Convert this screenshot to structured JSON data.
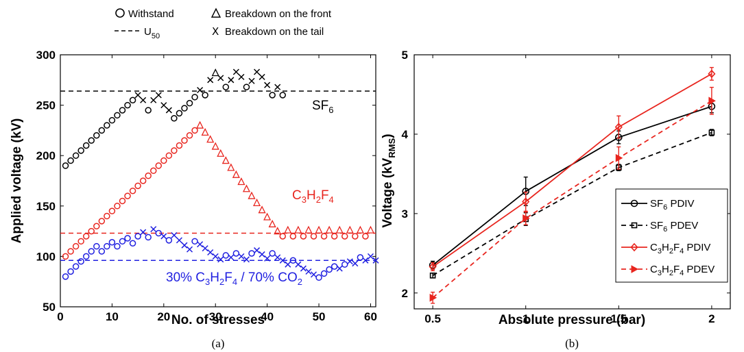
{
  "chart_data": [
    {
      "type": "scatter",
      "panel_caption": "(a)",
      "xlabel": "No. of stresses",
      "ylabel": "Applied voltage (kV)",
      "xlim": [
        0,
        61
      ],
      "ylim": [
        50,
        300
      ],
      "xticks": [
        "0",
        "10",
        "20",
        "30",
        "40",
        "50",
        "60"
      ],
      "yticks": [
        "50",
        "100",
        "150",
        "200",
        "250",
        "300"
      ],
      "legend": {
        "withstand": "Withstand",
        "front": "Breakdown on the front",
        "u50": "U",
        "u50_sub": "50",
        "tail": "Breakdown on the tail"
      },
      "labels": {
        "sf6": "SF",
        "sf6_sub": "6",
        "c3": "C",
        "c3_sub3": "3",
        "c3_h": "H",
        "c3_sub2": "2",
        "c3_f": "F",
        "c3_sub4": "4",
        "mix_a": "30% C",
        "mix_sub3": "3",
        "mix_h": "H",
        "mix_sub2": "2",
        "mix_f": "F",
        "mix_sub4": "4",
        "mix_b": " / 70% CO",
        "mix_subco": "2"
      },
      "series": [
        {
          "name": "SF6",
          "color": "#000000",
          "u50": 264,
          "points": [
            [
              1,
              190,
              "o"
            ],
            [
              2,
              195,
              "o"
            ],
            [
              3,
              200,
              "o"
            ],
            [
              4,
              205,
              "o"
            ],
            [
              5,
              210,
              "o"
            ],
            [
              6,
              215,
              "o"
            ],
            [
              7,
              220,
              "o"
            ],
            [
              8,
              225,
              "o"
            ],
            [
              9,
              230,
              "o"
            ],
            [
              10,
              235,
              "o"
            ],
            [
              11,
              240,
              "o"
            ],
            [
              12,
              245,
              "o"
            ],
            [
              13,
              250,
              "o"
            ],
            [
              14,
              255,
              "o"
            ],
            [
              15,
              260,
              "x"
            ],
            [
              16,
              255,
              "x"
            ],
            [
              17,
              245,
              "o"
            ],
            [
              18,
              255,
              "x"
            ],
            [
              19,
              260,
              "x"
            ],
            [
              20,
              250,
              "x"
            ],
            [
              21,
              245,
              "x"
            ],
            [
              22,
              237,
              "o"
            ],
            [
              23,
              242,
              "o"
            ],
            [
              24,
              247,
              "o"
            ],
            [
              25,
              252,
              "o"
            ],
            [
              26,
              258,
              "o"
            ],
            [
              27,
              265,
              "x"
            ],
            [
              28,
              260,
              "o"
            ],
            [
              29,
              275,
              "x"
            ],
            [
              30,
              282,
              "t"
            ],
            [
              31,
              277,
              "x"
            ],
            [
              32,
              268,
              "o"
            ],
            [
              33,
              275,
              "x"
            ],
            [
              34,
              283,
              "x"
            ],
            [
              35,
              278,
              "x"
            ],
            [
              36,
              268,
              "o"
            ],
            [
              37,
              274,
              "x"
            ],
            [
              38,
              283,
              "x"
            ],
            [
              39,
              278,
              "x"
            ],
            [
              40,
              270,
              "x"
            ],
            [
              41,
              260,
              "o"
            ],
            [
              42,
              268,
              "x"
            ],
            [
              43,
              260,
              "o"
            ]
          ]
        },
        {
          "name": "C3H2F4",
          "color": "#e8251e",
          "u50": 123,
          "points": [
            [
              1,
              100,
              "o"
            ],
            [
              2,
              105,
              "o"
            ],
            [
              3,
              110,
              "o"
            ],
            [
              4,
              115,
              "o"
            ],
            [
              5,
              120,
              "o"
            ],
            [
              6,
              125,
              "o"
            ],
            [
              7,
              130,
              "o"
            ],
            [
              8,
              135,
              "o"
            ],
            [
              9,
              140,
              "o"
            ],
            [
              10,
              145,
              "o"
            ],
            [
              11,
              150,
              "o"
            ],
            [
              12,
              155,
              "o"
            ],
            [
              13,
              160,
              "o"
            ],
            [
              14,
              165,
              "o"
            ],
            [
              15,
              170,
              "o"
            ],
            [
              16,
              175,
              "o"
            ],
            [
              17,
              180,
              "o"
            ],
            [
              18,
              185,
              "o"
            ],
            [
              19,
              190,
              "o"
            ],
            [
              20,
              195,
              "o"
            ],
            [
              21,
              200,
              "o"
            ],
            [
              22,
              205,
              "o"
            ],
            [
              23,
              210,
              "o"
            ],
            [
              24,
              215,
              "o"
            ],
            [
              25,
              220,
              "o"
            ],
            [
              26,
              225,
              "o"
            ],
            [
              27,
              230,
              "t"
            ],
            [
              28,
              223,
              "t"
            ],
            [
              29,
              216,
              "t"
            ],
            [
              30,
              209,
              "t"
            ],
            [
              31,
              202,
              "t"
            ],
            [
              32,
              195,
              "t"
            ],
            [
              33,
              188,
              "t"
            ],
            [
              34,
              181,
              "t"
            ],
            [
              35,
              174,
              "t"
            ],
            [
              36,
              167,
              "t"
            ],
            [
              37,
              160,
              "t"
            ],
            [
              38,
              153,
              "t"
            ],
            [
              39,
              146,
              "t"
            ],
            [
              40,
              139,
              "t"
            ],
            [
              41,
              132,
              "t"
            ],
            [
              42,
              125,
              "t"
            ],
            [
              43,
              120,
              "o"
            ],
            [
              44,
              126,
              "t"
            ],
            [
              45,
              120,
              "o"
            ],
            [
              46,
              126,
              "t"
            ],
            [
              47,
              120,
              "o"
            ],
            [
              48,
              126,
              "t"
            ],
            [
              49,
              120,
              "o"
            ],
            [
              50,
              126,
              "t"
            ],
            [
              51,
              120,
              "o"
            ],
            [
              52,
              126,
              "t"
            ],
            [
              53,
              120,
              "o"
            ],
            [
              54,
              126,
              "t"
            ],
            [
              55,
              120,
              "o"
            ],
            [
              56,
              126,
              "t"
            ],
            [
              57,
              120,
              "o"
            ],
            [
              58,
              126,
              "t"
            ],
            [
              59,
              120,
              "o"
            ],
            [
              60,
              126,
              "t"
            ]
          ]
        },
        {
          "name": "30% C3H2F4 / 70% CO2",
          "color": "#1f1fe0",
          "u50": 96,
          "points": [
            [
              1,
              80,
              "o"
            ],
            [
              2,
              85,
              "o"
            ],
            [
              3,
              90,
              "o"
            ],
            [
              4,
              95,
              "o"
            ],
            [
              5,
              100,
              "o"
            ],
            [
              6,
              105,
              "o"
            ],
            [
              7,
              110,
              "o"
            ],
            [
              8,
              105,
              "o"
            ],
            [
              9,
              110,
              "o"
            ],
            [
              10,
              114,
              "o"
            ],
            [
              11,
              110,
              "o"
            ],
            [
              12,
              115,
              "o"
            ],
            [
              13,
              118,
              "o"
            ],
            [
              14,
              113,
              "o"
            ],
            [
              15,
              120,
              "o"
            ],
            [
              16,
              124,
              "x"
            ],
            [
              17,
              119,
              "o"
            ],
            [
              18,
              127,
              "x"
            ],
            [
              19,
              123,
              "o"
            ],
            [
              20,
              120,
              "x"
            ],
            [
              21,
              116,
              "o"
            ],
            [
              22,
              121,
              "x"
            ],
            [
              23,
              116,
              "x"
            ],
            [
              24,
              111,
              "x"
            ],
            [
              25,
              107,
              "x"
            ],
            [
              26,
              115,
              "o"
            ],
            [
              27,
              112,
              "x"
            ],
            [
              28,
              108,
              "x"
            ],
            [
              29,
              104,
              "x"
            ],
            [
              30,
              100,
              "x"
            ],
            [
              31,
              97,
              "x"
            ],
            [
              32,
              101,
              "o"
            ],
            [
              33,
              99,
              "x"
            ],
            [
              34,
              103,
              "o"
            ],
            [
              35,
              100,
              "x"
            ],
            [
              36,
              97,
              "x"
            ],
            [
              37,
              103,
              "o"
            ],
            [
              38,
              106,
              "x"
            ],
            [
              39,
              102,
              "x"
            ],
            [
              40,
              98,
              "x"
            ],
            [
              41,
              103,
              "o"
            ],
            [
              42,
              99,
              "x"
            ],
            [
              43,
              96,
              "x"
            ],
            [
              44,
              92,
              "x"
            ],
            [
              45,
              96,
              "o"
            ],
            [
              46,
              92,
              "x"
            ],
            [
              47,
              88,
              "x"
            ],
            [
              48,
              85,
              "x"
            ],
            [
              49,
              82,
              "x"
            ],
            [
              50,
              79,
              "o"
            ],
            [
              51,
              83,
              "o"
            ],
            [
              52,
              87,
              "o"
            ],
            [
              53,
              90,
              "o"
            ],
            [
              54,
              88,
              "x"
            ],
            [
              55,
              92,
              "o"
            ],
            [
              56,
              95,
              "x"
            ],
            [
              57,
              93,
              "x"
            ],
            [
              58,
              99,
              "o"
            ],
            [
              59,
              96,
              "x"
            ],
            [
              60,
              100,
              "x"
            ],
            [
              61,
              96,
              "x"
            ]
          ]
        }
      ]
    },
    {
      "type": "line",
      "panel_caption": "(b)",
      "xlabel": "Absolute pressure (bar)",
      "ylabel": "Voltage (kV",
      "ylabel_sub": "RMS",
      "ylabel_end": ")",
      "xlim": [
        0.4,
        2.1
      ],
      "ylim": [
        1.8,
        5
      ],
      "xticks": [
        0.5,
        1,
        1.5,
        2
      ],
      "xtick_labels": [
        "0.5",
        "1",
        "1.5",
        "2"
      ],
      "yticks": [
        2,
        3,
        4,
        5
      ],
      "ytick_labels": [
        "2",
        "3",
        "4",
        "5"
      ],
      "x": [
        0.5,
        1,
        1.5,
        2
      ],
      "series": [
        {
          "label_main": "SF",
          "label_sub": "6",
          "label_tail": " PDIV",
          "color": "#000000",
          "dash": false,
          "marker": "o",
          "values": [
            2.35,
            3.28,
            3.96,
            4.35
          ],
          "errors": [
            0.05,
            0.18,
            0.08,
            0.08
          ]
        },
        {
          "label_main": "SF",
          "label_sub": "6",
          "label_tail": " PDEV",
          "color": "#000000",
          "dash": true,
          "marker": "s",
          "values": [
            2.22,
            2.93,
            3.58,
            4.02
          ],
          "errors": [
            0.03,
            0.08,
            0.04,
            0.04
          ]
        },
        {
          "label_main": "C",
          "label_sub": "3",
          "label_mid1": "H",
          "label_sub2": "2",
          "label_mid2": "F",
          "label_sub3": "4",
          "label_tail": " PDIV",
          "color": "#e8251e",
          "dash": false,
          "marker": "d",
          "values": [
            2.33,
            3.15,
            4.09,
            4.76
          ],
          "errors": [
            0.05,
            0.12,
            0.14,
            0.08
          ]
        },
        {
          "label_main": "C",
          "label_sub": "3",
          "label_mid1": "H",
          "label_sub2": "2",
          "label_mid2": "F",
          "label_sub3": "4",
          "label_tail": " PDEV",
          "color": "#e8251e",
          "dash": true,
          "marker": "t",
          "values": [
            1.94,
            2.94,
            3.7,
            4.42
          ],
          "errors": [
            0.07,
            0.08,
            0.14,
            0.17
          ]
        }
      ]
    }
  ]
}
